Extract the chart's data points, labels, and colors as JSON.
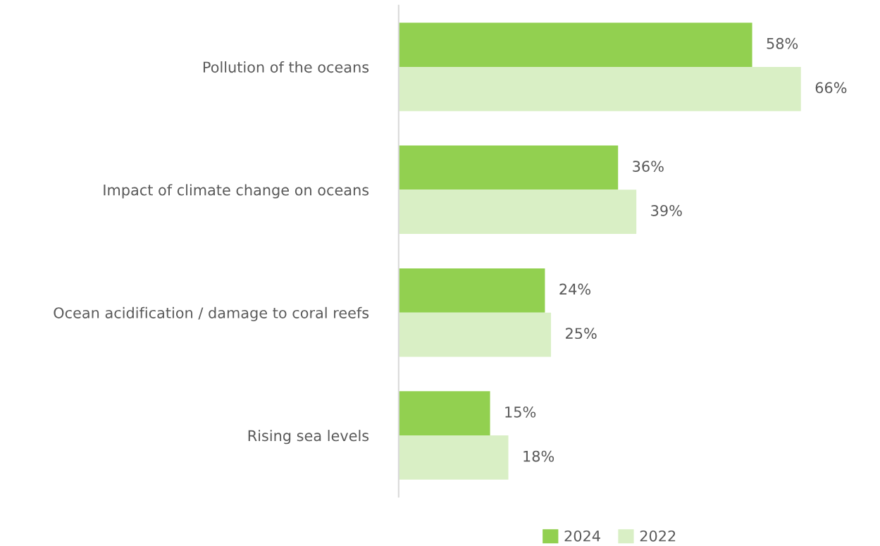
{
  "chart_data": {
    "type": "bar",
    "orientation": "horizontal",
    "categories": [
      "Pollution of the oceans",
      "Impact of climate change on oceans",
      "Ocean acidification / damage to coral reefs",
      "Rising sea levels"
    ],
    "series": [
      {
        "name": "2024",
        "color": "#92d050",
        "values": [
          58,
          36,
          24,
          15
        ],
        "value_labels": [
          "58%",
          "36%",
          "24%",
          "15%"
        ]
      },
      {
        "name": "2022",
        "color": "#d9efc5",
        "values": [
          66,
          39,
          25,
          18
        ],
        "value_labels": [
          "66%",
          "39%",
          "25%",
          "18%"
        ]
      }
    ],
    "tick_labels": "y",
    "grid": false,
    "legend": "bottom"
  }
}
